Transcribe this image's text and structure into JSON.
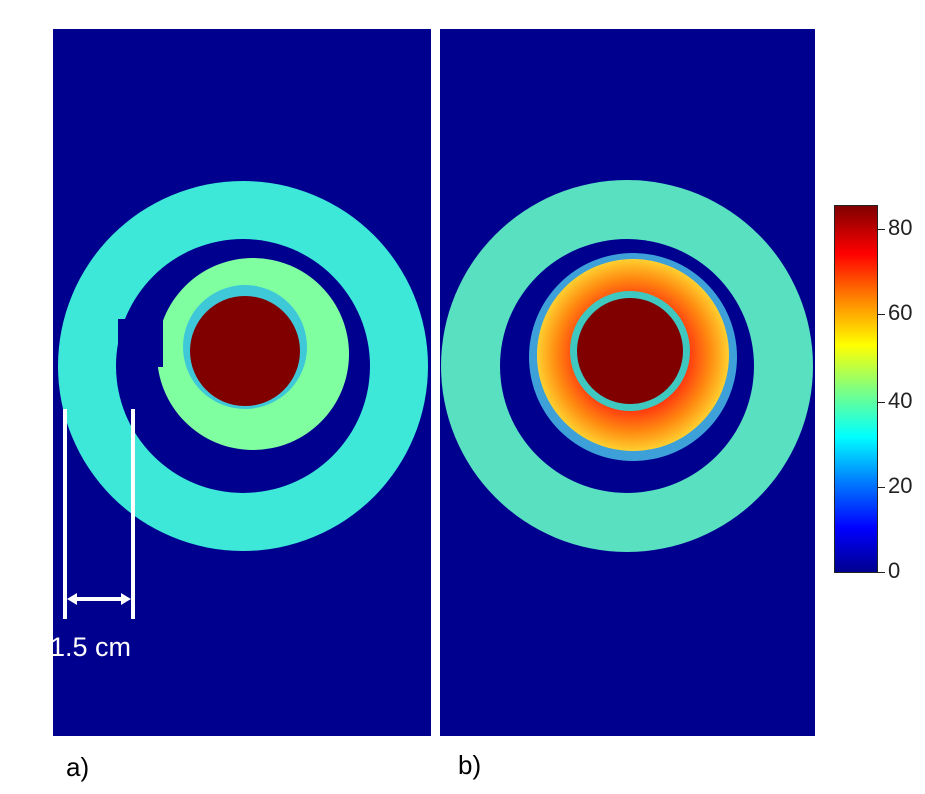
{
  "panels": {
    "a": {
      "label": "a)"
    },
    "b": {
      "label": "b)"
    }
  },
  "scale_bar": {
    "text": "1.5 cm"
  },
  "colorbar": {
    "ticks": [
      "80",
      "60",
      "40",
      "20",
      "0"
    ],
    "colormap": "jet",
    "range": [
      0,
      85
    ]
  },
  "colors": {
    "background": "#00008f",
    "outer_ring": "#3ee8d8",
    "middle_ring_a": "#7fffa0",
    "core": "#800000",
    "middle_ring_b": "#ff8a10"
  }
}
